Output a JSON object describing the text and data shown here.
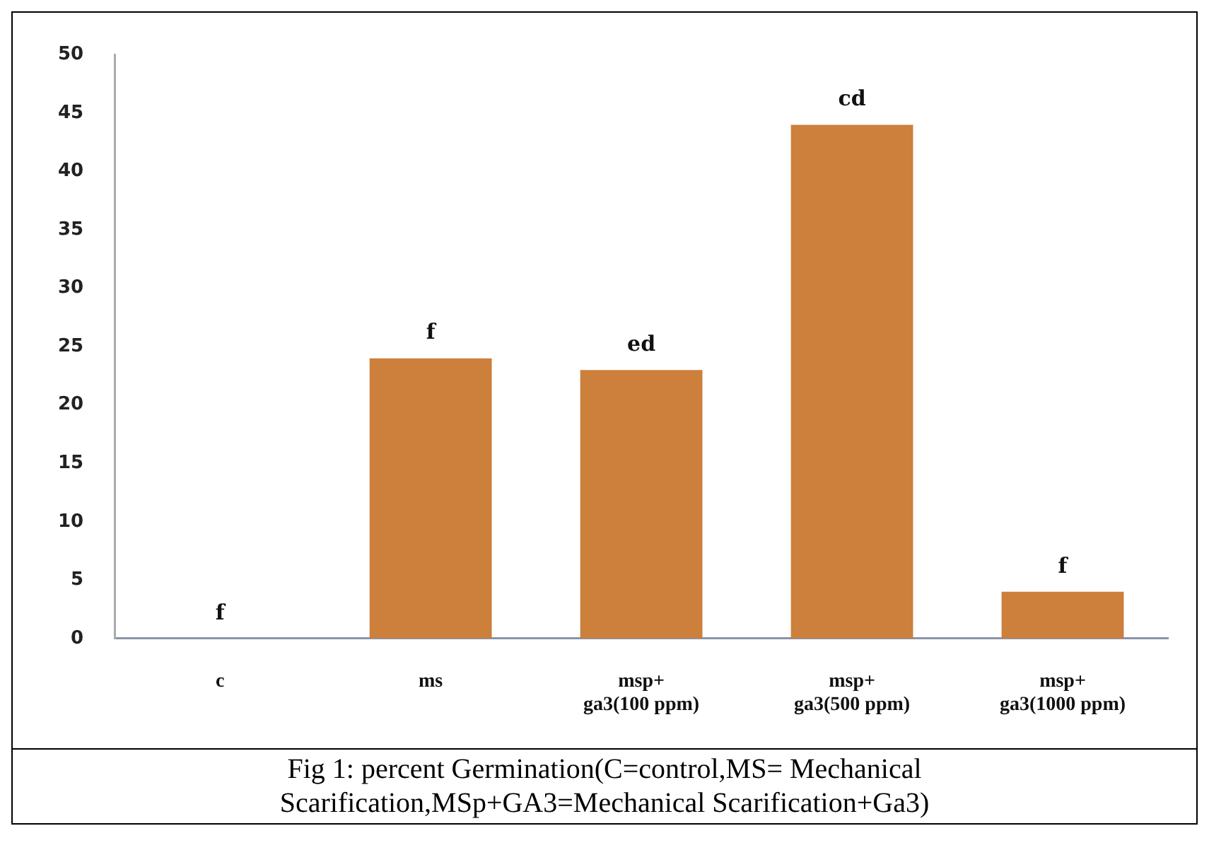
{
  "chart_data": {
    "type": "bar",
    "categories": [
      "c",
      "ms",
      "msp+\nga3(100 ppm)",
      "msp+\nga3(500 ppm)",
      "msp+\nga3(1000 ppm)"
    ],
    "values": [
      0,
      24,
      23,
      44,
      4
    ],
    "color": "#cd7f3c",
    "ylim": [
      0,
      50
    ],
    "yticks": [
      0,
      5,
      10,
      15,
      20,
      25,
      30,
      35,
      40,
      45,
      50
    ],
    "grid": false,
    "legend": false,
    "annotations": [
      {
        "text": "f",
        "x": "c",
        "y": 0
      },
      {
        "text": "f",
        "x": "ms",
        "y": 24
      },
      {
        "text": "ed",
        "x": "msp+\nga3(100 ppm)",
        "y": 23
      },
      {
        "text": "cd",
        "x": "msp+\nga3(500 ppm)",
        "y": 44
      },
      {
        "text": "f",
        "x": "msp+\nga3(1000 ppm)",
        "y": 4
      },
      "Fig 1: percent Germination(C=control,MS= Mechanical Scarification,MSp+GA3=Mechanical Scarification+Ga3)"
    ]
  }
}
